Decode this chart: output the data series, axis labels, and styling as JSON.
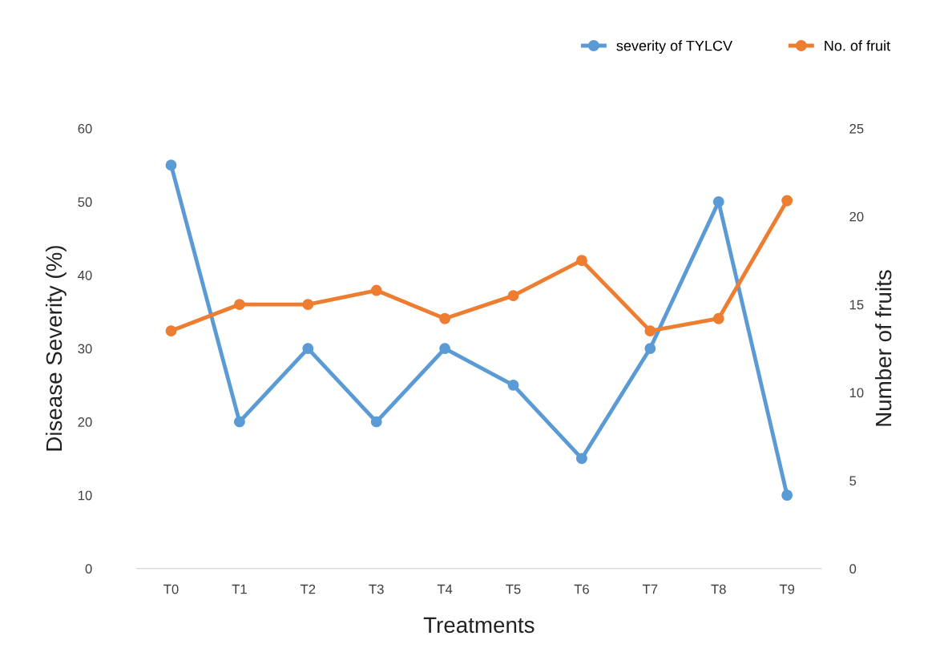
{
  "chart_data": {
    "type": "line",
    "xlabel": "Treatments",
    "ylabel": "Disease Severity (%)",
    "y2label": "Number of fruits",
    "categories": [
      "T0",
      "T1",
      "T2",
      "T3",
      "T4",
      "T5",
      "T6",
      "T7",
      "T8",
      "T9"
    ],
    "series": [
      {
        "name": "severity of TYLCV",
        "color": "#5b9bd5",
        "values": [
          55,
          20,
          30,
          20,
          30,
          25,
          15,
          30,
          50,
          10
        ]
      },
      {
        "name": "No. of fruit",
        "color": "#ed7d31",
        "axis": "y2",
        "values": [
          13.5,
          15,
          15,
          15.8,
          14.2,
          15.5,
          17.5,
          13.5,
          14.2,
          20.9
        ]
      }
    ],
    "ylim": [
      0,
      60
    ],
    "yticks": [
      0,
      10,
      20,
      30,
      40,
      50,
      60
    ],
    "y2lim": [
      0,
      25
    ],
    "y2ticks": [
      0,
      5,
      10,
      15,
      20,
      25
    ],
    "marker": "circle",
    "line_style": "solid",
    "grid": false,
    "legend": "top right"
  }
}
